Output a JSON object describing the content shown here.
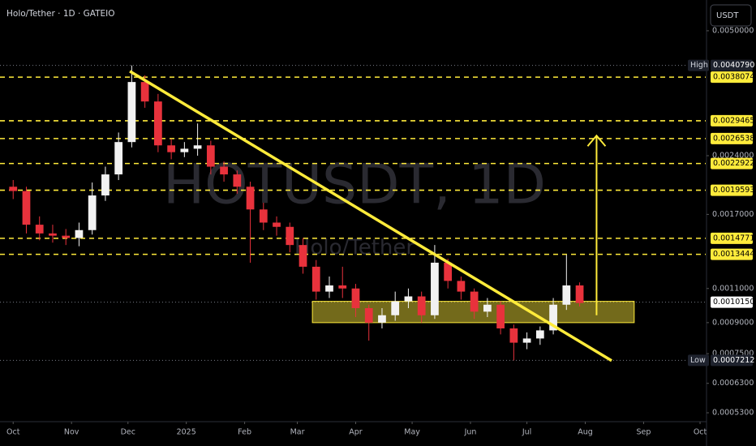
{
  "chart_data": {
    "type": "candlestick",
    "title": "Holo/Tether · 1D · GATEIO",
    "watermark": "HOTUSDT, 1D",
    "watermark_subtitle": "Holo/Tether",
    "currency": "USDT",
    "up_color": "#f2f2f2",
    "down_color": "#e8323c",
    "level_color": "#ffeb3b",
    "log_scale": true,
    "x": [
      0,
      7,
      14,
      21,
      28,
      35,
      42,
      49,
      56,
      63,
      70,
      77,
      84,
      91,
      98,
      105,
      112,
      119,
      126,
      133,
      140,
      147,
      154,
      161,
      168,
      175,
      182,
      189,
      196,
      203,
      210,
      217,
      224,
      231,
      238,
      245,
      252,
      259,
      266,
      273,
      280,
      287,
      294,
      301
    ],
    "open": [
      0.002,
      0.00195,
      0.0016,
      0.00152,
      0.0015,
      0.00148,
      0.00155,
      0.0019,
      0.00215,
      0.0026,
      0.0037,
      0.0033,
      0.00255,
      0.00245,
      0.0025,
      0.00255,
      0.00225,
      0.00215,
      0.002,
      0.00175,
      0.00162,
      0.00158,
      0.00142,
      0.00125,
      0.00108,
      0.00112,
      0.0011,
      0.00098,
      0.0009,
      0.00094,
      0.00102,
      0.00105,
      0.00094,
      0.00128,
      0.00115,
      0.00108,
      0.00096,
      0.001,
      0.00087,
      0.0008,
      0.00082,
      0.00086,
      0.001,
      0.00112
    ],
    "high": [
      0.00208,
      0.002,
      0.00168,
      0.0016,
      0.00156,
      0.00162,
      0.00205,
      0.00225,
      0.00275,
      0.004079,
      0.00385,
      0.00345,
      0.00265,
      0.0026,
      0.0029,
      0.00262,
      0.00232,
      0.0022,
      0.00206,
      0.00182,
      0.00168,
      0.00162,
      0.00148,
      0.0013,
      0.00118,
      0.00125,
      0.00113,
      0.001,
      0.00098,
      0.00108,
      0.0011,
      0.00108,
      0.00142,
      0.00131,
      0.00118,
      0.0011,
      0.00104,
      0.00102,
      0.00089,
      0.00085,
      0.00088,
      0.00104,
      0.00134,
      0.00114
    ],
    "low": [
      0.00186,
      0.00152,
      0.00146,
      0.00144,
      0.00142,
      0.00141,
      0.00151,
      0.00184,
      0.00208,
      0.00252,
      0.00318,
      0.00245,
      0.00235,
      0.00238,
      0.0024,
      0.00215,
      0.00206,
      0.00192,
      0.00128,
      0.00155,
      0.0015,
      0.00136,
      0.0012,
      0.00103,
      0.00104,
      0.00104,
      0.00093,
      0.00081,
      0.00087,
      0.00091,
      0.00098,
      0.0009,
      0.00092,
      0.0011,
      0.00103,
      0.00092,
      0.00093,
      0.00084,
      0.0007212,
      0.00077,
      0.00079,
      0.00084,
      0.00097,
      0.00099
    ],
    "close": [
      0.00195,
      0.0016,
      0.00152,
      0.0015,
      0.00148,
      0.00155,
      0.0019,
      0.00215,
      0.0026,
      0.0037,
      0.0033,
      0.00255,
      0.00245,
      0.0025,
      0.00255,
      0.00225,
      0.00215,
      0.002,
      0.00175,
      0.00162,
      0.00158,
      0.00142,
      0.00125,
      0.00108,
      0.00112,
      0.0011,
      0.00098,
      0.0009,
      0.00094,
      0.00102,
      0.00105,
      0.00094,
      0.00128,
      0.00115,
      0.00108,
      0.00096,
      0.001,
      0.00087,
      0.0008,
      0.00082,
      0.00086,
      0.001,
      0.00112,
      0.00101
    ],
    "xlim": [
      -7,
      368
    ],
    "xticks": [
      {
        "value": 0,
        "label": "Oct"
      },
      {
        "value": 31,
        "label": "Nov"
      },
      {
        "value": 61,
        "label": "Dec"
      },
      {
        "value": 92,
        "label": "2025"
      },
      {
        "value": 123,
        "label": "Feb"
      },
      {
        "value": 151,
        "label": "Mar"
      },
      {
        "value": 182,
        "label": "Apr"
      },
      {
        "value": 212,
        "label": "May"
      },
      {
        "value": 243,
        "label": "Jun"
      },
      {
        "value": 273,
        "label": "Jul"
      },
      {
        "value": 304,
        "label": "Aug"
      },
      {
        "value": 335,
        "label": "Sep"
      },
      {
        "value": 365,
        "label": "Oct"
      }
    ],
    "ylim": [
      0.000503,
      0.00599
    ],
    "yticks": [
      {
        "value": 0.005,
        "label": "0.0050000"
      },
      {
        "value": 0.0024,
        "label": "0.0024000"
      },
      {
        "value": 0.0017,
        "label": "0.0017000"
      },
      {
        "value": 0.0011,
        "label": "0.0011000"
      },
      {
        "value": 0.0009,
        "label": "0.0009000"
      },
      {
        "value": 0.00075,
        "label": "0.0007500"
      },
      {
        "value": 0.00063,
        "label": "0.0006300"
      },
      {
        "value": 0.00053,
        "label": "0.0005300"
      }
    ],
    "levels": [
      {
        "value": 0.0038074,
        "label": "0.0038074"
      },
      {
        "value": 0.0029465,
        "label": "0.0029465"
      },
      {
        "value": 0.0026538,
        "label": "0.0026538"
      },
      {
        "value": 0.0022922,
        "label": "0.0022922"
      },
      {
        "value": 0.0019593,
        "label": "0.0019593"
      },
      {
        "value": 0.0014771,
        "label": "0.0014771"
      },
      {
        "value": 0.0013444,
        "label": "0.0013444"
      }
    ],
    "high_marker": {
      "name": "High",
      "value": 0.004079,
      "label": "0.0040790"
    },
    "low_marker": {
      "name": "Low",
      "value": 0.0007212,
      "label": "0.0007212"
    },
    "last_price": {
      "value": 0.001015,
      "label": "0.0010150"
    },
    "trendline": {
      "x": [
        62,
        318
      ],
      "values": [
        0.00394,
        0.00072
      ]
    },
    "zone": {
      "x": [
        159,
        330
      ],
      "values": [
        0.0009,
        0.00102
      ]
    },
    "arrow": {
      "x": [
        310,
        310
      ],
      "values": [
        0.00094,
        0.0027
      ]
    }
  }
}
